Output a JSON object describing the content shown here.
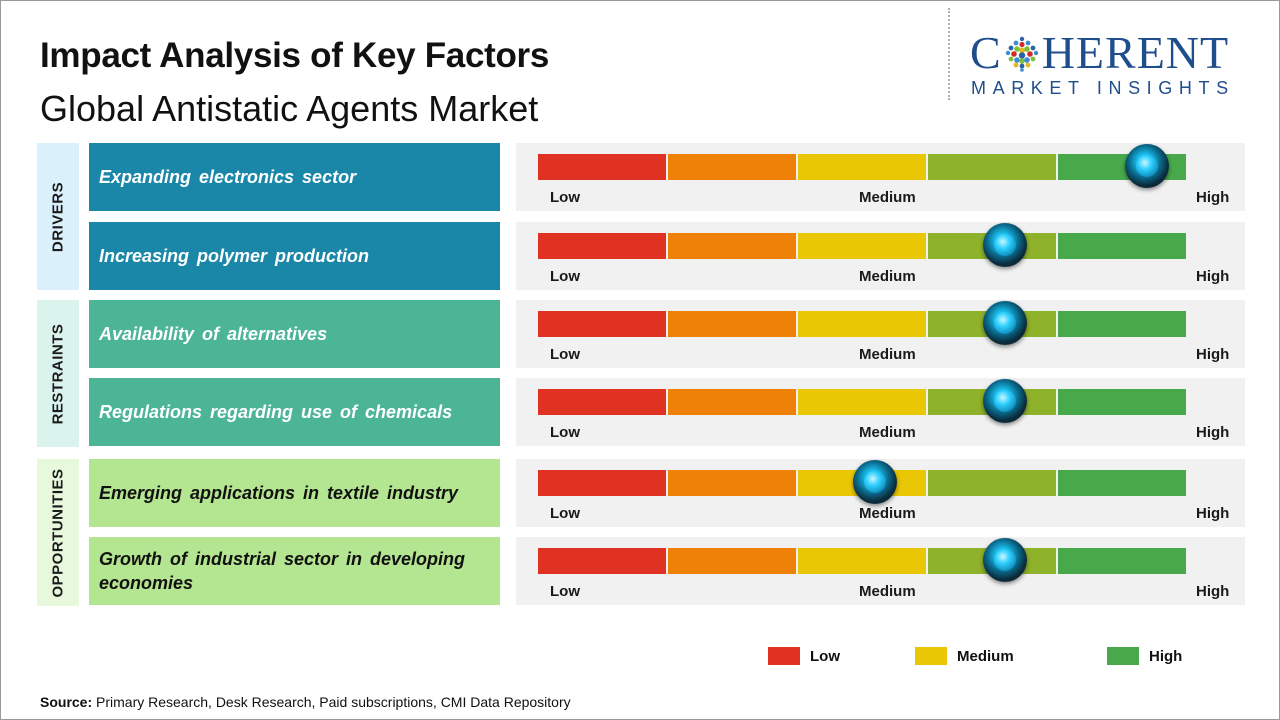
{
  "title": "Impact Analysis of Key Factors",
  "subtitle": "Global Antistatic Agents Market",
  "logo": {
    "main": "CoHERENT",
    "main_left": "C",
    "main_right": "HERENT",
    "sub": "MARKET INSIGHTS",
    "color": "#1f4e8c"
  },
  "categories": [
    {
      "label": "DRIVERS",
      "bg": "#daf0fb"
    },
    {
      "label": "RESTRAINTS",
      "bg": "#daf3ec"
    },
    {
      "label": "OPPORTUNITIES",
      "bg": "#e8f8dc"
    }
  ],
  "scale": {
    "low": "Low",
    "medium": "Medium",
    "high": "High"
  },
  "scale_colors": [
    "#e03222",
    "#ef8108",
    "#e9c704",
    "#8fb22b",
    "#48a94b"
  ],
  "chart_data": {
    "type": "table",
    "scale_range": [
      0,
      5
    ],
    "factors": [
      {
        "label": "Expanding electronics sector",
        "category": "DRIVERS",
        "impact": 4.7,
        "color": "#1a87a8",
        "text_color": "#ffffff"
      },
      {
        "label": "Increasing polymer production",
        "category": "DRIVERS",
        "impact": 3.6,
        "color": "#1a87a8",
        "text_color": "#ffffff"
      },
      {
        "label": "Availability of alternatives",
        "category": "RESTRAINTS",
        "impact": 3.6,
        "color": "#4cb596",
        "text_color": "#ffffff"
      },
      {
        "label": "Regulations regarding use of chemicals",
        "category": "RESTRAINTS",
        "impact": 3.6,
        "color": "#4cb596",
        "text_color": "#ffffff"
      },
      {
        "label": "Emerging applications in textile industry",
        "category": "OPPORTUNITIES",
        "impact": 2.6,
        "color": "#b4e590",
        "text_color": "#111111"
      },
      {
        "label": "Growth of industrial sector in developing economies",
        "category": "OPPORTUNITIES",
        "impact": 3.6,
        "color": "#b4e590",
        "text_color": "#111111"
      }
    ]
  },
  "legend": [
    {
      "label": "Low",
      "color": "#e03222"
    },
    {
      "label": "Medium",
      "color": "#e9c704"
    },
    {
      "label": "High",
      "color": "#48a94b"
    }
  ],
  "source": {
    "label": "Source:",
    "text": "Primary Research, Desk Research, Paid subscriptions, CMI Data Repository"
  }
}
